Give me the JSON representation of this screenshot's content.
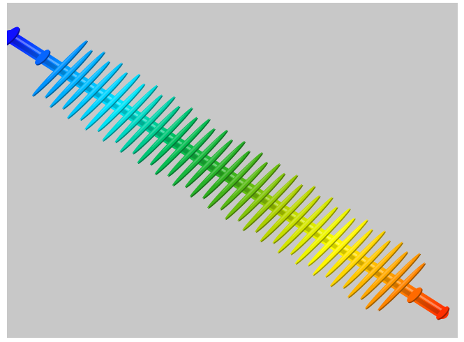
{
  "scene": {
    "subject": "insulator-model",
    "background_color": "#c8c8c8",
    "colormap": [
      "#1010ff",
      "#00a0ff",
      "#00e6ff",
      "#00c060",
      "#30b020",
      "#b0d000",
      "#ffff00",
      "#ffa000",
      "#ff3000"
    ],
    "shed_count": 40,
    "end_fittings": 2
  }
}
